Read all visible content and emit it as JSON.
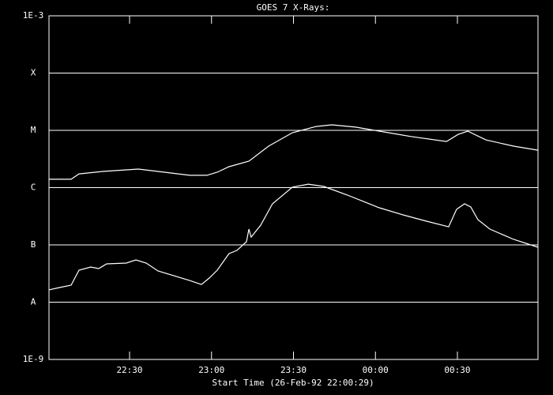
{
  "chart_data": {
    "type": "line",
    "title": "GOES 7 X-Rays:",
    "x_label": "Start Time (26-Feb-92 22:00:29)",
    "log_y": true,
    "grid": true,
    "background": "#000000",
    "foreground": "#ffffff",
    "xlim": [
      0.5,
      179.5
    ],
    "xticks": [
      {
        "value": 30,
        "label": "22:30"
      },
      {
        "value": 60,
        "label": "23:00"
      },
      {
        "value": 90,
        "label": "23:30"
      },
      {
        "value": 120,
        "label": "00:00"
      },
      {
        "value": 150,
        "label": "00:30"
      }
    ],
    "ylim": [
      1e-09,
      0.001
    ],
    "yticks": [
      {
        "value": 1e-09,
        "label": "1E-9"
      },
      {
        "value": 1e-08,
        "label": "A"
      },
      {
        "value": 1e-07,
        "label": "B"
      },
      {
        "value": 1e-06,
        "label": "C"
      },
      {
        "value": 1e-05,
        "label": "M"
      },
      {
        "value": 0.0001,
        "label": "X"
      },
      {
        "value": 0.001,
        "label": "1E-3"
      }
    ],
    "series": [
      {
        "color": "#ffffff",
        "x": [
          0.5,
          8.6,
          11.5,
          20.2,
          33.2,
          40.4,
          52.0,
          58.3,
          62.1,
          66.4,
          73.7,
          80.9,
          89.6,
          98.3,
          104.0,
          112.7,
          121.4,
          133.0,
          146.0,
          150.3,
          153.8,
          160.4,
          170.6,
          179.5
        ],
        "values": [
          1.4e-06,
          1.4e-06,
          1.74e-06,
          1.92e-06,
          2.11e-06,
          1.92e-06,
          1.64e-06,
          1.64e-06,
          1.86e-06,
          2.32e-06,
          2.9e-06,
          5.3e-06,
          9.1e-06,
          1.17e-05,
          1.25e-05,
          1.14e-05,
          9.7e-06,
          7.8e-06,
          6.4e-06,
          8.5e-06,
          9.7e-06,
          6.8e-06,
          5.3e-06,
          4.5e-06
        ]
      },
      {
        "color": "#ffffff",
        "x": [
          0.5,
          4.3,
          8.6,
          11.5,
          15.8,
          18.7,
          21.6,
          28.8,
          32.3,
          36.1,
          40.4,
          52.0,
          56.3,
          59.2,
          62.1,
          66.4,
          69.3,
          72.8,
          73.7,
          74.5,
          78.0,
          82.3,
          89.6,
          95.4,
          101.1,
          109.8,
          121.4,
          130.1,
          138.7,
          146.8,
          149.7,
          152.6,
          154.9,
          157.5,
          161.9,
          170.6,
          179.5
        ],
        "values": [
          1.64e-08,
          1.8e-08,
          1.98e-08,
          3.62e-08,
          4.11e-08,
          3.86e-08,
          4.67e-08,
          4.82e-08,
          5.47e-08,
          4.82e-08,
          3.51e-08,
          2.39e-08,
          2.04e-08,
          2.64e-08,
          3.62e-08,
          7.05e-08,
          8e-08,
          1.14e-07,
          1.89e-07,
          1.37e-07,
          2.21e-07,
          5.21e-07,
          1.02e-06,
          1.15e-06,
          1.05e-06,
          7.4e-07,
          4.45e-07,
          3.34e-07,
          2.59e-07,
          2.07e-07,
          4.18e-07,
          5.21e-07,
          4.59e-07,
          2.76e-07,
          1.89e-07,
          1.25e-07,
          9.1e-08
        ]
      }
    ]
  }
}
